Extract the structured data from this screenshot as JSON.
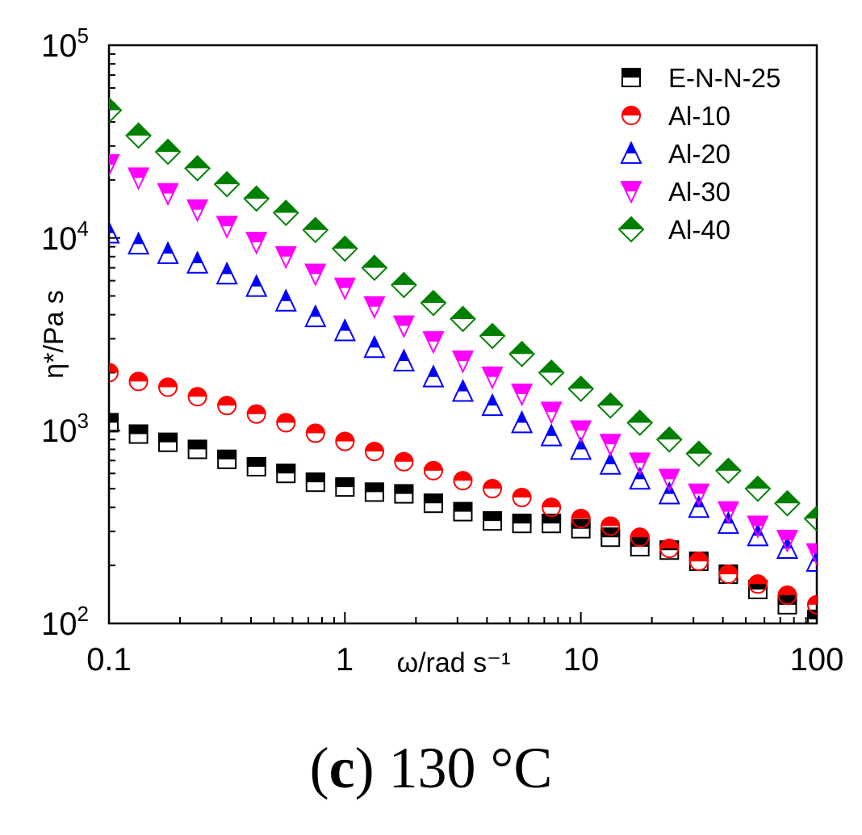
{
  "chart_data": {
    "type": "scatter",
    "xscale": "log",
    "yscale": "log",
    "xlim": [
      0.1,
      100
    ],
    "ylim": [
      100,
      100000
    ],
    "xlabel": "ω/rad s⁻¹",
    "ylabel": "η*/Pa s",
    "x_ticks": [
      "0.1",
      "1",
      "10",
      "100"
    ],
    "y_ticks": [
      {
        "base": "10",
        "exp": "2"
      },
      {
        "base": "10",
        "exp": "3"
      },
      {
        "base": "10",
        "exp": "4"
      },
      {
        "base": "10",
        "exp": "5"
      }
    ],
    "legend_position": "top-right",
    "x": [
      0.1,
      0.1334,
      0.1778,
      0.2371,
      0.3162,
      0.4217,
      0.5623,
      0.7499,
      1.0,
      1.334,
      1.778,
      2.371,
      3.162,
      4.217,
      5.623,
      7.499,
      10.0,
      13.34,
      17.78,
      23.71,
      31.62,
      42.17,
      56.23,
      74.99,
      100.0
    ],
    "series": [
      {
        "name": "E-N-N-25",
        "color": "#000000",
        "marker": "square",
        "values": [
          1100,
          960,
          870,
          800,
          710,
          650,
          600,
          540,
          510,
          480,
          470,
          420,
          380,
          340,
          330,
          330,
          310,
          280,
          250,
          240,
          210,
          180,
          150,
          125,
          105
        ]
      },
      {
        "name": "Al-10",
        "color": "#ff0000",
        "marker": "circle",
        "values": [
          2000,
          1800,
          1680,
          1500,
          1350,
          1220,
          1100,
          970,
          880,
          780,
          690,
          620,
          550,
          500,
          450,
          400,
          350,
          320,
          280,
          245,
          210,
          180,
          160,
          140,
          125
        ]
      },
      {
        "name": "Al-20",
        "color": "#0000ff",
        "marker": "triangle-up",
        "values": [
          10600,
          9300,
          8300,
          7400,
          6500,
          5600,
          4700,
          3900,
          3300,
          2700,
          2300,
          1900,
          1600,
          1350,
          1100,
          940,
          800,
          670,
          560,
          470,
          400,
          330,
          285,
          245,
          210
        ]
      },
      {
        "name": "Al-30",
        "color": "#ff00ff",
        "marker": "triangle-down",
        "values": [
          24000,
          20500,
          17000,
          14000,
          11500,
          9500,
          8000,
          6500,
          5500,
          4400,
          3500,
          2900,
          2300,
          1900,
          1550,
          1250,
          1000,
          850,
          680,
          560,
          470,
          380,
          320,
          270,
          230
        ]
      },
      {
        "name": "Al-40",
        "color": "#008000",
        "marker": "diamond",
        "values": [
          46000,
          34000,
          28000,
          23000,
          19000,
          16000,
          13500,
          11000,
          8800,
          7000,
          5700,
          4600,
          3800,
          3100,
          2500,
          2000,
          1650,
          1350,
          1100,
          900,
          760,
          620,
          500,
          420,
          350
        ]
      }
    ]
  },
  "caption": {
    "label": "c",
    "text": "130 °C"
  }
}
